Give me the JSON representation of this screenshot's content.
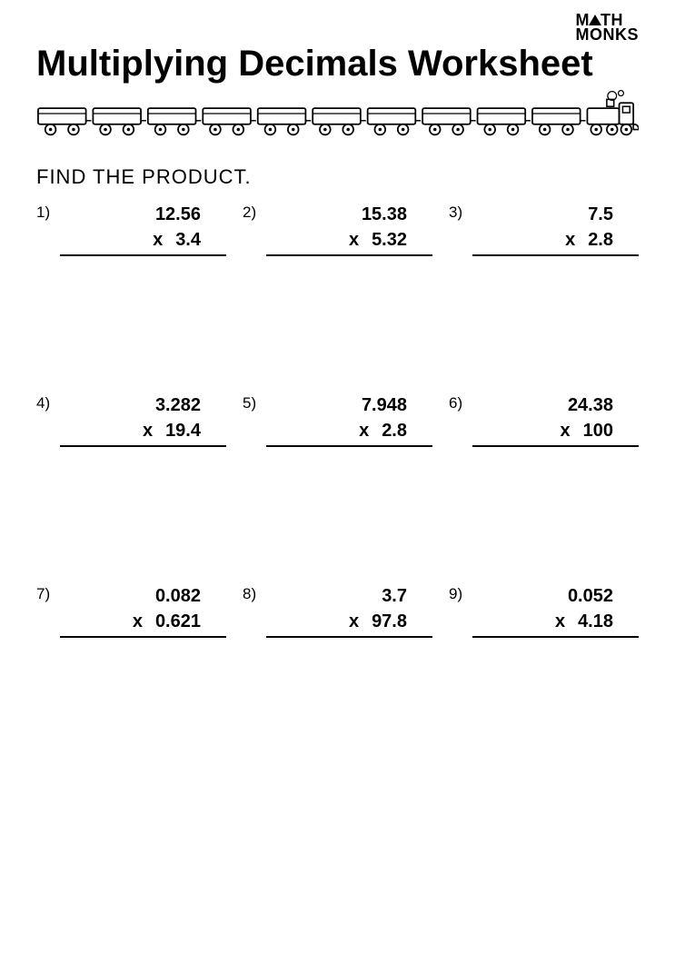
{
  "logo": {
    "line1_pre": "M",
    "line1_post": "TH",
    "line2": "MONKS"
  },
  "title": "Multiplying Decimals Worksheet",
  "instruction": "find the product.",
  "mult_symbol": "x",
  "problems": [
    {
      "n": "1)",
      "a": "12.56",
      "b": "3.4"
    },
    {
      "n": "2)",
      "a": "15.38",
      "b": "5.32"
    },
    {
      "n": "3)",
      "a": "7.5",
      "b": "2.8"
    },
    {
      "n": "4)",
      "a": "3.282",
      "b": "19.4"
    },
    {
      "n": "5)",
      "a": "7.948",
      "b": "2.8"
    },
    {
      "n": "6)",
      "a": "24.38",
      "b": "100"
    },
    {
      "n": "7)",
      "a": "0.082",
      "b": "0.621"
    },
    {
      "n": "8)",
      "a": "3.7",
      "b": "97.8"
    },
    {
      "n": "9)",
      "a": "0.052",
      "b": "4.18"
    }
  ],
  "colors": {
    "background": "#ffffff",
    "text": "#000000",
    "rule": "#000000"
  },
  "train": {
    "car_count": 10,
    "stroke": "#000000",
    "fill": "#ffffff"
  }
}
